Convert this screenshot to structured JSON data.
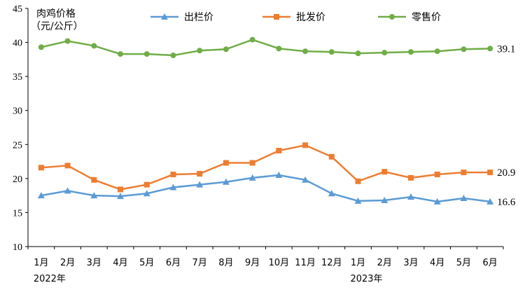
{
  "chart_data": {
    "type": "line",
    "ylabel_line1": "肉鸡价格",
    "ylabel_line2": "（元/公斤）",
    "ylim": [
      10,
      45
    ],
    "yticks": [
      10,
      15,
      20,
      25,
      30,
      35,
      40,
      45
    ],
    "categories": [
      "1月",
      "2月",
      "3月",
      "4月",
      "5月",
      "6月",
      "7月",
      "8月",
      "9月",
      "10月",
      "11月",
      "12月",
      "1月",
      "2月",
      "3月",
      "4月",
      "5月",
      "6月"
    ],
    "year_labels": [
      "2022年",
      "2023年"
    ],
    "grid": false,
    "legend_position": "top",
    "series": [
      {
        "name": "出栏价",
        "color": "#5B9BD5",
        "marker": "triangle",
        "values": [
          17.5,
          18.2,
          17.5,
          17.4,
          17.8,
          18.7,
          19.1,
          19.5,
          20.1,
          20.5,
          19.8,
          17.8,
          16.7,
          16.8,
          17.3,
          16.6,
          17.1,
          16.6
        ],
        "end_label": "16.6"
      },
      {
        "name": "批发价",
        "color": "#ED7D31",
        "marker": "square",
        "values": [
          21.6,
          21.9,
          19.8,
          18.4,
          19.1,
          20.6,
          20.7,
          22.3,
          22.3,
          24.1,
          24.9,
          23.2,
          19.6,
          21.0,
          20.1,
          20.6,
          20.9,
          20.9
        ],
        "end_label": "20.9"
      },
      {
        "name": "零售价",
        "color": "#70AD47",
        "marker": "circle",
        "values": [
          39.3,
          40.2,
          39.5,
          38.3,
          38.3,
          38.1,
          38.8,
          39.0,
          40.4,
          39.1,
          38.7,
          38.6,
          38.4,
          38.5,
          38.6,
          38.7,
          39.0,
          39.1
        ],
        "end_label": "39.1"
      }
    ]
  }
}
